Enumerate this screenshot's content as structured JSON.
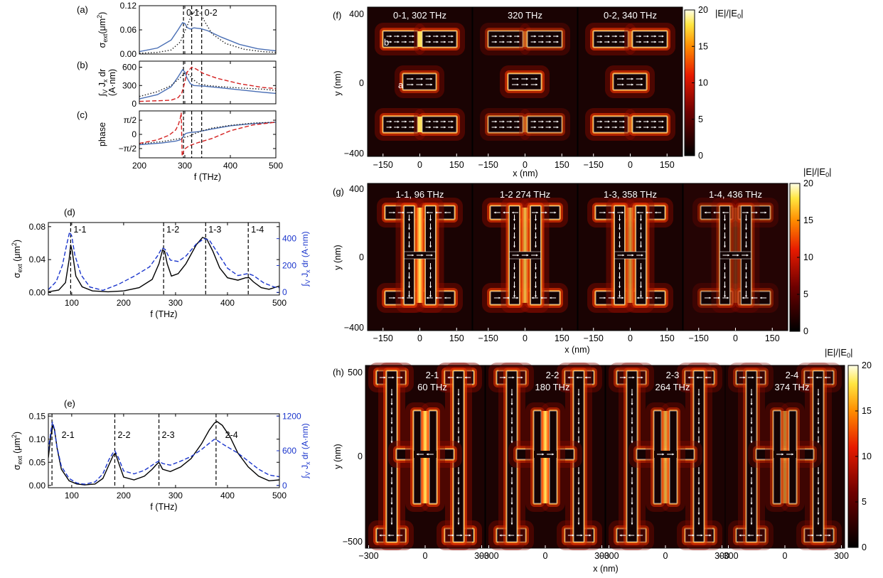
{
  "chart_data": [
    {
      "id": "a",
      "type": "line",
      "panel_label": "(a)",
      "ylabel_main": "σ",
      "ylabel_sub": "ext",
      "ylabel_tail": "(μm",
      "ylabel_sup": "2",
      "ylabel_close": ")",
      "xlim": [
        200,
        500
      ],
      "ylim": [
        0,
        0.12
      ],
      "xticks": [
        200,
        300,
        400,
        500
      ],
      "yticks": [
        0,
        0.06,
        0.12
      ],
      "ytick_labels": [
        "0.00",
        "0.06",
        "0.12"
      ],
      "vlines": [
        297,
        315,
        337
      ],
      "vline_labels": [
        {
          "x": 297,
          "text": "0-1"
        },
        {
          "x": 337,
          "text": "0-2"
        }
      ],
      "series": [
        {
          "style": "solid",
          "color": "#4a6fb5",
          "x": [
            200,
            240,
            270,
            285,
            295,
            300,
            305,
            312,
            320,
            335,
            350,
            380,
            420,
            460,
            500
          ],
          "y": [
            0.006,
            0.015,
            0.035,
            0.06,
            0.078,
            0.076,
            0.066,
            0.062,
            0.065,
            0.063,
            0.058,
            0.042,
            0.024,
            0.013,
            0.008
          ]
        },
        {
          "style": "dotted",
          "color": "#222222",
          "x": [
            200,
            240,
            270,
            290,
            305,
            315,
            325,
            335,
            345,
            360,
            390,
            430,
            470,
            500
          ],
          "y": [
            0.002,
            0.004,
            0.01,
            0.03,
            0.07,
            0.097,
            0.11,
            0.1,
            0.078,
            0.05,
            0.026,
            0.012,
            0.006,
            0.004
          ]
        }
      ]
    },
    {
      "id": "b",
      "type": "line",
      "panel_label": "(b)",
      "ylabel_main": "∫",
      "ylabel_sub": "V",
      "ylabel_tail": " J",
      "ylabel_sub2": "x",
      "ylabel_end": " dr",
      "ylabel_line2": "(A·nm)",
      "xlim": [
        200,
        500
      ],
      "ylim": [
        0,
        700
      ],
      "xticks": [
        200,
        300,
        400,
        500
      ],
      "yticks": [
        0,
        300,
        600
      ],
      "ytick_labels": [
        "0",
        "300",
        "600"
      ],
      "vlines": [
        297,
        315,
        337
      ],
      "series": [
        {
          "style": "solid",
          "color": "#4a6fb5",
          "x": [
            200,
            240,
            270,
            285,
            295,
            300,
            305,
            312,
            320,
            340,
            370,
            420,
            470,
            500
          ],
          "y": [
            80,
            150,
            280,
            440,
            560,
            520,
            420,
            330,
            300,
            290,
            270,
            230,
            190,
            170
          ]
        },
        {
          "style": "dotted",
          "color": "#222222",
          "x": [
            200,
            240,
            270,
            290,
            302,
            310,
            318,
            330,
            350,
            380,
            420,
            470,
            500
          ],
          "y": [
            120,
            200,
            300,
            430,
            520,
            470,
            400,
            330,
            300,
            280,
            260,
            240,
            220
          ]
        },
        {
          "style": "dashed",
          "color": "#d42020",
          "x": [
            200,
            240,
            270,
            285,
            293,
            298,
            305,
            315,
            325,
            340,
            370,
            420,
            470,
            500
          ],
          "y": [
            40,
            50,
            60,
            100,
            170,
            300,
            520,
            600,
            570,
            500,
            420,
            330,
            270,
            250
          ]
        }
      ]
    },
    {
      "id": "c",
      "type": "line",
      "panel_label": "(c)",
      "ylabel_main": "phase",
      "xlim": [
        200,
        500
      ],
      "ylim": [
        -2.6,
        2.6
      ],
      "xticks": [
        200,
        300,
        400,
        500
      ],
      "xtick_labels": [
        "200",
        "300",
        "400",
        "500"
      ],
      "yticks": [
        -1.5708,
        0,
        1.5708
      ],
      "ytick_labels": [
        "−π/2",
        "0",
        "π/2"
      ],
      "xlabel": "f (THz)",
      "vlines": [
        297,
        315,
        337
      ],
      "series": [
        {
          "style": "solid",
          "color": "#4a6fb5",
          "x": [
            200,
            250,
            280,
            290,
            295,
            298,
            302,
            310,
            330,
            360,
            400,
            450,
            500
          ],
          "y": [
            -1.15,
            -0.95,
            -0.75,
            -0.6,
            -0.4,
            -0.1,
            0.1,
            0.2,
            0.3,
            0.6,
            0.95,
            1.2,
            1.35
          ]
        },
        {
          "style": "dotted",
          "color": "#222222",
          "x": [
            200,
            250,
            290,
            310,
            318,
            325,
            335,
            360,
            400,
            450,
            500
          ],
          "y": [
            -1.05,
            -0.8,
            -0.45,
            -0.2,
            0,
            0.15,
            0.35,
            0.7,
            1.0,
            1.25,
            1.35
          ]
        },
        {
          "style": "dashed",
          "color": "#d42020",
          "x": [
            200,
            240,
            265,
            280,
            286,
            290,
            292,
            294,
            297,
            300,
            310,
            330,
            360,
            400,
            450,
            500
          ],
          "y": [
            -1.0,
            -0.6,
            -0.1,
            0.5,
            1.1,
            1.8,
            2.4,
            -2.4,
            -1.9,
            -1.6,
            -1.25,
            -0.9,
            -0.45,
            0.4,
            1.05,
            1.35
          ]
        }
      ]
    },
    {
      "id": "d",
      "type": "line",
      "panel_label": "(d)",
      "ylabel_main": "σ",
      "ylabel_sub": "ext",
      "ylabel_tail": "  (μm",
      "ylabel_sup": "2",
      "ylabel_close": ")",
      "y2label_main": "∫",
      "y2label_sub": "V",
      "y2label_tail": " J",
      "y2label_sub2": "x",
      "y2label_end": " dr (A·nm)",
      "xlim": [
        55,
        500
      ],
      "ylim": [
        -0.003,
        0.085
      ],
      "y2lim": [
        -20,
        520
      ],
      "xticks": [
        100,
        200,
        300,
        400,
        500
      ],
      "xtick_labels": [
        "100",
        "200",
        "300",
        "400",
        "500"
      ],
      "yticks": [
        0,
        0.04,
        0.08
      ],
      "ytick_labels": [
        "0.00",
        "0.04",
        "0.08"
      ],
      "y2ticks": [
        0,
        200,
        400
      ],
      "y2tick_labels": [
        "0",
        "200",
        "400"
      ],
      "xlabel": "f (THz)",
      "vlines": [
        98,
        277,
        358,
        440
      ],
      "vline_labels": [
        {
          "x": 98,
          "text": "1-1"
        },
        {
          "x": 277,
          "text": "1-2"
        },
        {
          "x": 358,
          "text": "1-3"
        },
        {
          "x": 440,
          "text": "1-4"
        }
      ],
      "series": [
        {
          "style": "solid",
          "color": "#000000",
          "axis": "left",
          "x": [
            55,
            75,
            88,
            95,
            98,
            101,
            108,
            120,
            140,
            170,
            200,
            230,
            255,
            268,
            275,
            279,
            284,
            292,
            305,
            320,
            340,
            352,
            360,
            372,
            385,
            400,
            420,
            435,
            442,
            450,
            465,
            480,
            500
          ],
          "y": [
            0.001,
            0.003,
            0.012,
            0.04,
            0.058,
            0.05,
            0.02,
            0.007,
            0.002,
            0.001,
            0.002,
            0.006,
            0.016,
            0.035,
            0.052,
            0.05,
            0.035,
            0.02,
            0.023,
            0.035,
            0.058,
            0.067,
            0.065,
            0.05,
            0.03,
            0.018,
            0.015,
            0.018,
            0.018,
            0.013,
            0.006,
            0.004,
            0.008
          ]
        },
        {
          "style": "dashed",
          "color": "#1a35cc",
          "axis": "right",
          "x": [
            55,
            70,
            82,
            90,
            96,
            100,
            106,
            118,
            135,
            160,
            190,
            220,
            250,
            265,
            274,
            280,
            290,
            305,
            320,
            340,
            355,
            365,
            380,
            400,
            420,
            440,
            450,
            470,
            490,
            500
          ],
          "y": [
            20,
            80,
            200,
            350,
            450,
            420,
            280,
            130,
            40,
            15,
            60,
            120,
            190,
            270,
            330,
            320,
            240,
            230,
            270,
            360,
            400,
            390,
            300,
            180,
            125,
            140,
            125,
            70,
            40,
            35
          ]
        }
      ]
    },
    {
      "id": "e",
      "type": "line",
      "panel_label": "(e)",
      "ylabel_main": "σ",
      "ylabel_sub": "ext",
      "ylabel_tail": "  (μm",
      "ylabel_sup": "2",
      "ylabel_close": ")",
      "y2label_main": "∫",
      "y2label_sub": "V",
      "y2label_tail": " J",
      "y2label_sub2": "x",
      "y2label_end": " dr (A·nm)",
      "xlim": [
        55,
        500
      ],
      "ylim": [
        -0.005,
        0.155
      ],
      "y2lim": [
        -40,
        1240
      ],
      "xticks": [
        100,
        200,
        300,
        400,
        500
      ],
      "xtick_labels": [
        "100",
        "200",
        "300",
        "400",
        "500"
      ],
      "yticks": [
        0,
        0.05,
        0.1,
        0.15
      ],
      "ytick_labels": [
        "0.00",
        "0.05",
        "0.10",
        "0.15"
      ],
      "y2ticks": [
        0,
        600,
        1200
      ],
      "y2tick_labels": [
        "0",
        "600",
        "1200"
      ],
      "xlabel": "f (THz)",
      "vlines": [
        62,
        183,
        268,
        378
      ],
      "vline_labels": [
        {
          "x": 75,
          "text": "2-1"
        },
        {
          "x": 183,
          "text": "2-2"
        },
        {
          "x": 268,
          "text": "2-3"
        },
        {
          "x": 390,
          "text": "2-4"
        }
      ],
      "series": [
        {
          "style": "solid",
          "color": "#000000",
          "axis": "left",
          "x": [
            55,
            60,
            64,
            67,
            72,
            80,
            95,
            110,
            125,
            145,
            160,
            172,
            180,
            184,
            190,
            200,
            220,
            240,
            255,
            263,
            268,
            275,
            290,
            310,
            330,
            350,
            365,
            375,
            380,
            390,
            405,
            420,
            440,
            460,
            480,
            500
          ],
          "y": [
            0.06,
            0.11,
            0.13,
            0.12,
            0.08,
            0.035,
            0.01,
            0.003,
            0.001,
            0.003,
            0.015,
            0.045,
            0.065,
            0.07,
            0.05,
            0.018,
            0.012,
            0.02,
            0.035,
            0.045,
            0.05,
            0.035,
            0.03,
            0.04,
            0.058,
            0.09,
            0.12,
            0.135,
            0.138,
            0.13,
            0.105,
            0.07,
            0.04,
            0.02,
            0.01,
            0.012
          ]
        },
        {
          "style": "dashed",
          "color": "#1a35cc",
          "axis": "right",
          "x": [
            55,
            60,
            63,
            66,
            72,
            80,
            95,
            110,
            125,
            145,
            160,
            172,
            180,
            183,
            190,
            200,
            220,
            240,
            255,
            263,
            268,
            275,
            290,
            310,
            330,
            350,
            365,
            375,
            380,
            390,
            405,
            420,
            440,
            460,
            480,
            500
          ],
          "y": [
            600,
            950,
            1100,
            1000,
            650,
            330,
            120,
            40,
            20,
            60,
            200,
            450,
            570,
            600,
            480,
            250,
            200,
            260,
            350,
            400,
            420,
            380,
            350,
            420,
            500,
            620,
            730,
            800,
            780,
            720,
            640,
            560,
            420,
            280,
            180,
            150
          ]
        }
      ]
    }
  ],
  "maps": {
    "f": {
      "label": "(f)",
      "ylabel": "y (nm)",
      "xlabel": "x (nm)",
      "yticks": [
        "400",
        "0",
        "−400"
      ],
      "xticks": [
        "−150",
        "0",
        "150"
      ],
      "cbar_title": "|E|/|E",
      "cbar_sub": "0",
      "cbar_ticks": [
        "20",
        "15",
        "10",
        "5",
        "0"
      ],
      "particle_a": "a",
      "particle_b": "b",
      "titles": [
        "0-1, 302 THz",
        "320 THz",
        "0-2, 340 THz"
      ]
    },
    "g": {
      "label": "(g)",
      "ylabel": "y (nm)",
      "xlabel": "x (nm)",
      "yticks": [
        "400",
        "0",
        "−400"
      ],
      "xticks": [
        "−150",
        "0",
        "150"
      ],
      "cbar_title": "|E|/|E",
      "cbar_sub": "0",
      "cbar_ticks": [
        "20",
        "15",
        "10",
        "5",
        "0"
      ],
      "titles": [
        "1-1, 96 THz",
        "1-2 274 THz",
        "1-3, 358 THz",
        "1-4, 436 THz"
      ]
    },
    "h": {
      "label": "(h)",
      "ylabel": "y (nm)",
      "xlabel": "x (nm)",
      "yticks": [
        "500",
        "0",
        "−500"
      ],
      "xticks": [
        "−300",
        "0",
        "300"
      ],
      "cbar_title": "|E|/|E",
      "cbar_sub": "0",
      "cbar_ticks": [
        "20",
        "15",
        "10",
        "5",
        "0"
      ],
      "titles": [
        {
          "mode": "2-1",
          "freq": "60 THz"
        },
        {
          "mode": "2-2",
          "freq": "180 THz"
        },
        {
          "mode": "2-3",
          "freq": "264 THz"
        },
        {
          "mode": "2-4",
          "freq": "374 THz"
        }
      ]
    }
  }
}
